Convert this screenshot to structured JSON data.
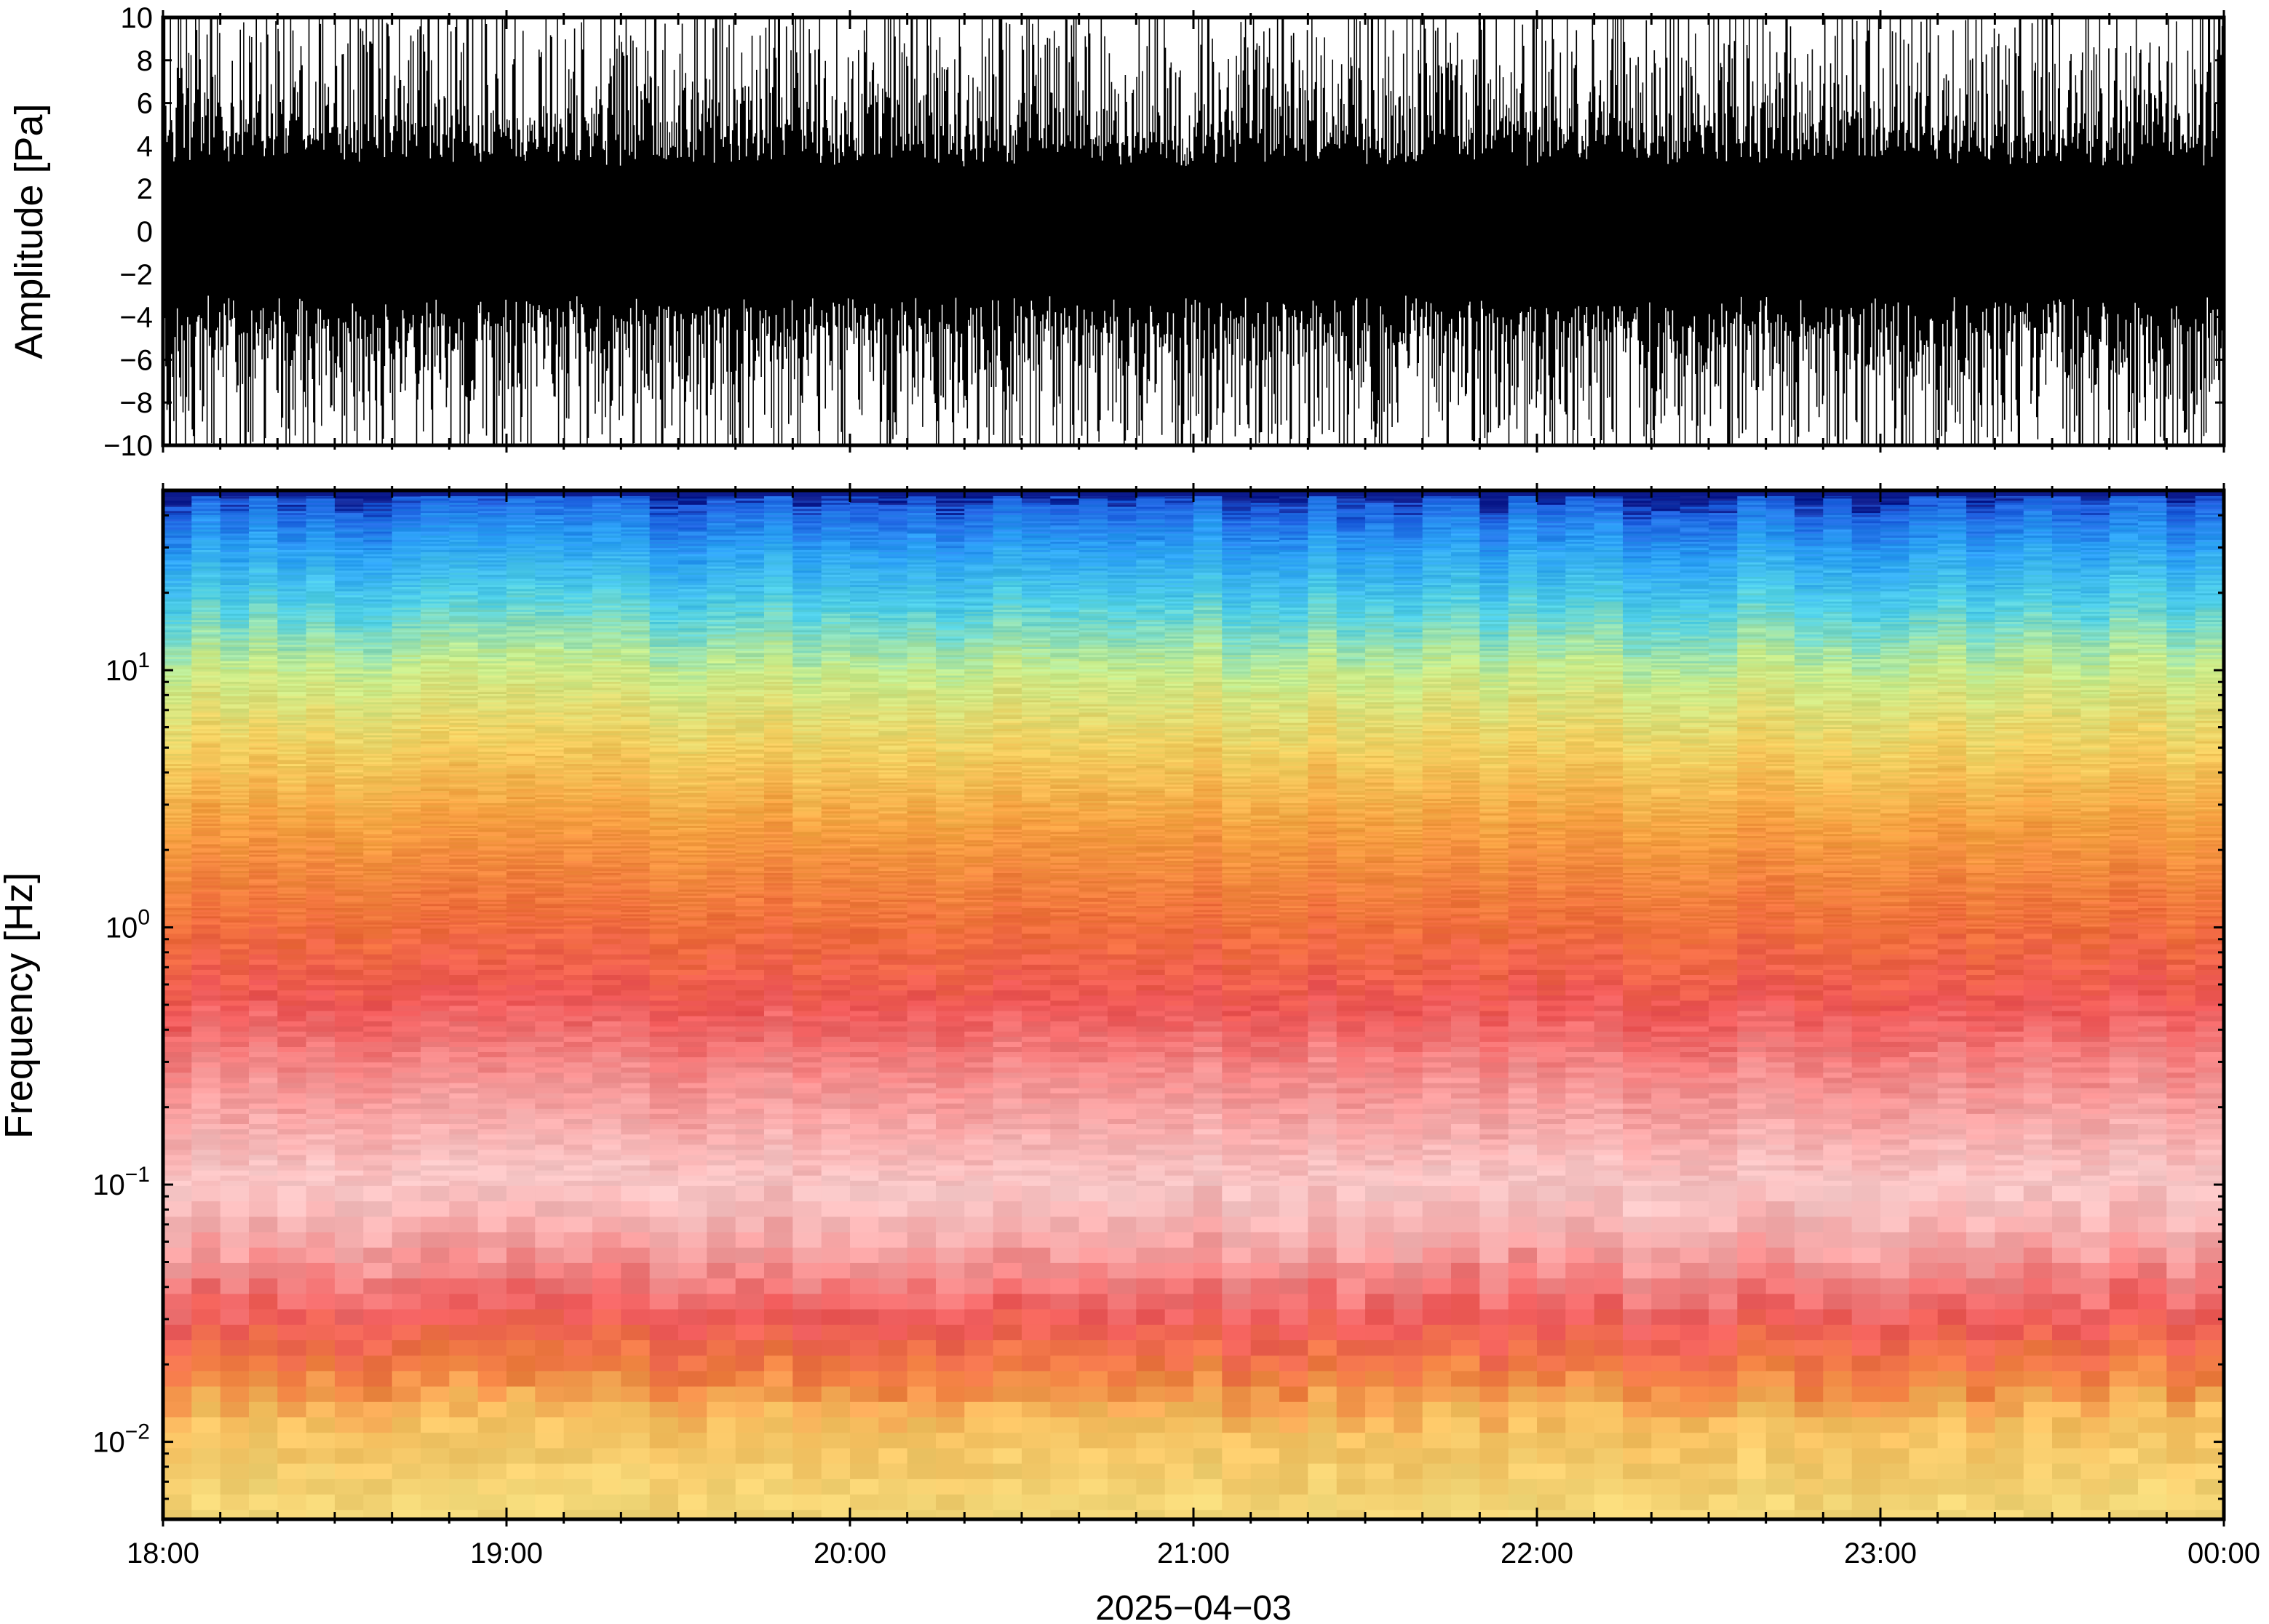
{
  "chart_data": [
    {
      "type": "line",
      "panel": "waveform",
      "ylabel": "Amplitude [Pa]",
      "ylim": [
        -10,
        10
      ],
      "yticks": [
        -10,
        -8,
        -6,
        -4,
        -2,
        0,
        2,
        4,
        6,
        8,
        10
      ],
      "ytick_labels": [
        "−10",
        "−8",
        "−6",
        "−4",
        "−2",
        "0",
        "2",
        "4",
        "6",
        "8",
        "10"
      ],
      "xlim": [
        "18:00",
        "00:00"
      ],
      "series": [
        {
          "color": "#000000",
          "description_values": "dense infrasound waveform; amplitude envelope per hour",
          "envelope_hours": [
            18,
            19,
            20,
            21,
            22,
            23,
            24
          ],
          "envelope_max": [
            10,
            10,
            10,
            10,
            10,
            10,
            10
          ],
          "typical_band": [
            3,
            3,
            3,
            3,
            3.5,
            3.5,
            3.5
          ]
        }
      ]
    },
    {
      "type": "heatmap",
      "panel": "spectrogram",
      "ylabel": "Frequency [Hz]",
      "yscale": "log",
      "ylim": [
        0.005,
        50
      ],
      "yticks": [
        0.01,
        0.1,
        1,
        10
      ],
      "ytick_labels": [
        {
          "base": "10",
          "exp": "−2"
        },
        {
          "base": "10",
          "exp": "−1"
        },
        {
          "base": "10",
          "exp": "0"
        },
        {
          "base": "10",
          "exp": "1"
        }
      ],
      "colormap": [
        "#0b1a8c",
        "#1e5fe0",
        "#2aa0f5",
        "#4fd0e6",
        "#9ce8b0",
        "#e6ea80",
        "#f7c55a",
        "#f59a3a",
        "#f06a3c",
        "#ef5050",
        "#f48a8a",
        "#f8c0c0",
        "#fbeaea"
      ],
      "color_by_log_frequency": [
        {
          "f": 50,
          "color": "#0b1a8c"
        },
        {
          "f": 45,
          "color": "#1e5fe0"
        },
        {
          "f": 30,
          "color": "#2aa0f5"
        },
        {
          "f": 18,
          "color": "#4fd0e6"
        },
        {
          "f": 10,
          "color": "#c8ec8a"
        },
        {
          "f": 5,
          "color": "#f2d060"
        },
        {
          "f": 2.5,
          "color": "#f5a040"
        },
        {
          "f": 1,
          "color": "#f06e3c"
        },
        {
          "f": 0.5,
          "color": "#ee5656"
        },
        {
          "f": 0.25,
          "color": "#f49090"
        },
        {
          "f": 0.1,
          "color": "#f8c8c8"
        },
        {
          "f": 0.06,
          "color": "#f5a8a8"
        },
        {
          "f": 0.03,
          "color": "#ef5a5a"
        },
        {
          "f": 0.018,
          "color": "#f08040"
        },
        {
          "f": 0.012,
          "color": "#f6c060"
        },
        {
          "f": 0.005,
          "color": "#f2d878"
        }
      ]
    }
  ],
  "x_axis": {
    "tick_labels": [
      "18:00",
      "19:00",
      "20:00",
      "21:00",
      "22:00",
      "23:00",
      "00:00"
    ],
    "date_label": "2025−04−03"
  }
}
